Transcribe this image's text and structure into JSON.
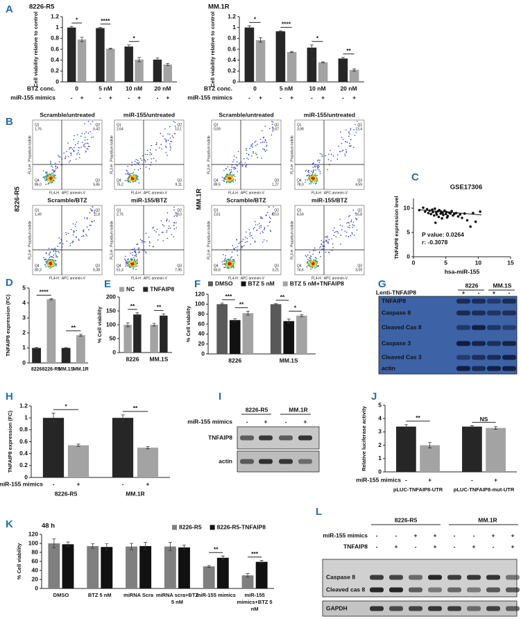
{
  "panel_letters": [
    "A",
    "B",
    "C",
    "D",
    "E",
    "F",
    "G",
    "H",
    "I",
    "J",
    "K",
    "L"
  ],
  "chart_data": [
    {
      "type": "bar",
      "title": "8226-R5",
      "ylabel": "Cell viability relative to control",
      "ylim": [
        0,
        1.2
      ],
      "yticks": [
        0,
        0.2,
        0.4,
        0.6,
        0.8,
        1,
        1.2
      ],
      "categories": [
        "0",
        "5 nM",
        "10 nM",
        "20 nM"
      ],
      "category_title": "BTZ conc.",
      "sub_title": "miR-155 mimics",
      "sub_labels": [
        "-",
        "+"
      ],
      "series": [
        {
          "color": "#262626",
          "values": [
            1.0,
            0.99,
            0.65,
            0.41
          ],
          "errors": [
            0.02,
            0.01,
            0.03,
            0.03
          ]
        },
        {
          "color": "#a3a3a3",
          "values": [
            0.78,
            0.61,
            0.41,
            0.32
          ],
          "errors": [
            0.04,
            0.01,
            0.04,
            0.02
          ],
          "significance": [
            "*",
            "****",
            "*",
            null
          ]
        }
      ]
    },
    {
      "type": "bar",
      "title": "MM.1R",
      "ylabel": "Cell viability relative to control",
      "ylim": [
        0,
        1.2
      ],
      "yticks": [
        0,
        0.2,
        0.4,
        0.6,
        0.8,
        1,
        1.2
      ],
      "categories": [
        "0",
        "5 nM",
        "10 nM",
        "20 nM"
      ],
      "category_title": "BTZ conc.",
      "sub_title": "miR-155 mimics",
      "sub_labels": [
        "-",
        "+"
      ],
      "series": [
        {
          "color": "#262626",
          "values": [
            1.0,
            0.93,
            0.63,
            0.43
          ],
          "errors": [
            0.03,
            0.01,
            0.05,
            0.02
          ]
        },
        {
          "color": "#a3a3a3",
          "values": [
            0.77,
            0.55,
            0.36,
            0.22
          ],
          "errors": [
            0.04,
            0.01,
            0.01,
            0.02
          ],
          "significance": [
            "*",
            "****",
            "*",
            "**"
          ]
        }
      ]
    },
    {
      "type": "scatter",
      "title": "GSE17306",
      "xlabel": "hsa-miR-155",
      "ylabel": "TNFAIP8 expression level",
      "xlim": [
        0,
        15
      ],
      "xticks": [
        0,
        5,
        10,
        15
      ],
      "ylim": [
        0,
        12
      ],
      "yticks": [
        0,
        5,
        10
      ],
      "color": "#111111",
      "x": [
        0.9,
        1.5,
        1.8,
        2.1,
        2.3,
        2.5,
        2.7,
        2.9,
        3.0,
        3.2,
        3.3,
        3.5,
        3.6,
        3.8,
        3.9,
        4.0,
        4.2,
        4.3,
        4.5,
        4.6,
        4.8,
        5.0,
        5.1,
        5.3,
        5.5,
        5.7,
        5.9,
        6.1,
        6.3,
        6.6,
        6.9,
        7.2,
        7.5,
        7.9,
        8.3,
        8.8,
        9.2,
        9.6,
        10.3,
        4.4,
        3.4,
        5.2
      ],
      "y": [
        9.6,
        10.1,
        9.3,
        9.8,
        9.0,
        9.5,
        8.8,
        9.7,
        9.2,
        8.5,
        9.9,
        9.1,
        8.7,
        9.4,
        8.2,
        9.6,
        8.9,
        9.3,
        9.0,
        8.6,
        9.5,
        8.8,
        9.2,
        8.4,
        9.1,
        8.9,
        9.4,
        8.5,
        8.8,
        9.0,
        8.3,
        8.7,
        8.0,
        8.9,
        7.5,
        6.2,
        9.0,
        7.2,
        9.3,
        7.9,
        7.0,
        8.1
      ],
      "trendline_x": [
        0.8,
        10.5
      ],
      "trendline_y": [
        9.7,
        8.6
      ],
      "annotations": [
        "P value: 0.0264",
        "r: -0.3078"
      ]
    },
    {
      "type": "bar",
      "ylabel": "TNFAIP8 expression (FC)",
      "ylim": [
        0,
        5
      ],
      "yticks": [
        0,
        1,
        2,
        3,
        4,
        5
      ],
      "categories": [
        "8226",
        "8226-R5",
        "MM.1S",
        "MM.1R"
      ],
      "series": [
        {
          "color": [
            "#262626",
            "#a3a3a3",
            "#262626",
            "#a3a3a3"
          ],
          "values": [
            1.0,
            4.25,
            1.0,
            1.85
          ],
          "errors": [
            0.03,
            0.04,
            0.02,
            0.06
          ],
          "significance": [
            null,
            "****",
            null,
            "**"
          ]
        }
      ]
    },
    {
      "type": "bar",
      "ylabel": "% Cell viability",
      "legend": "top-left",
      "ylim": [
        0,
        200
      ],
      "yticks": [
        0,
        50,
        100,
        150,
        200
      ],
      "categories": [
        "8226",
        "MM.1S"
      ],
      "series": [
        {
          "name": "NC",
          "color": "#a3a3a3",
          "values": [
            100,
            100
          ],
          "errors": [
            7,
            5
          ]
        },
        {
          "name": "TNFAIP8",
          "color": "#262626",
          "values": [
            137,
            133
          ],
          "errors": [
            6,
            6
          ],
          "significance": [
            "**",
            "**"
          ]
        }
      ]
    },
    {
      "type": "bar",
      "ylabel": "% Cell viability",
      "legend": "top-left",
      "ylim": [
        0,
        120
      ],
      "yticks": [
        0,
        20,
        40,
        60,
        80,
        100,
        120
      ],
      "categories": [
        "8226",
        "MM.1S"
      ],
      "series": [
        {
          "name": "DMSO",
          "color": "#595959",
          "values": [
            100,
            100
          ],
          "errors": [
            2,
            1
          ]
        },
        {
          "name": "BTZ 5 nM",
          "color": "#111111",
          "values": [
            68,
            66
          ],
          "errors": [
            3,
            4
          ],
          "significance": [
            "***",
            "**"
          ]
        },
        {
          "name": "BTZ 5 nM+TNFAIP8",
          "color": "#a3a3a3",
          "values": [
            82,
            77
          ],
          "errors": [
            4,
            2
          ],
          "significance": [
            "**",
            "*"
          ]
        }
      ]
    },
    {
      "type": "bar",
      "ylabel": "TNFAIP8 expression (FC)",
      "ylim": [
        0,
        1.2
      ],
      "yticks": [
        0,
        0.2,
        0.4,
        0.6,
        0.8,
        1,
        1.2
      ],
      "categories": [
        "8226-R5",
        "MM.1R"
      ],
      "sub_title": "miR-155 mimics",
      "sub_labels": [
        "-",
        "+"
      ],
      "series": [
        {
          "color": "#262626",
          "values": [
            1.0,
            1.0
          ],
          "errors": [
            0.08,
            0.05
          ]
        },
        {
          "color": "#a3a3a3",
          "values": [
            0.54,
            0.5
          ],
          "errors": [
            0.02,
            0.02
          ],
          "significance": [
            "*",
            "**"
          ]
        }
      ]
    },
    {
      "type": "bar",
      "ylabel": "Relative luciferase activity",
      "ylim": [
        0,
        5
      ],
      "yticks": [
        0,
        1,
        2,
        3,
        4,
        5
      ],
      "categories": [
        "pLUC-TNFAIP8-UTR",
        "pLUC-TNFAIP8-mut-UTR"
      ],
      "sub_title": "miR-155 mimics",
      "sub_labels": [
        "-",
        "+"
      ],
      "series": [
        {
          "color": "#262626",
          "values": [
            3.4,
            3.4
          ],
          "errors": [
            0.15,
            0.06
          ]
        },
        {
          "color": "#a3a3a3",
          "values": [
            2.0,
            3.3
          ],
          "errors": [
            0.2,
            0.1
          ],
          "significance": [
            "**",
            "NS"
          ]
        }
      ]
    },
    {
      "type": "bar",
      "title": "48 h",
      "ylabel": "% Cell viability",
      "legend": "top-right",
      "ylim": [
        0,
        120
      ],
      "yticks": [
        0,
        20,
        40,
        60,
        80,
        100,
        120
      ],
      "categories": [
        "DMSO",
        "BTZ 5 nM",
        "miRNA Scra",
        "miRNA scra+BTZ 5 nM",
        "miR-155 mimics",
        "miR-155 mimics+BTZ 5 nM"
      ],
      "series": [
        {
          "name": "8226-R5",
          "color": "#7f7f7f",
          "values": [
            100,
            94,
            93,
            93,
            49,
            29
          ],
          "errors": [
            10,
            5,
            7,
            9,
            2,
            4
          ]
        },
        {
          "name": "8226-R5-TNFAIP8",
          "color": "#111111",
          "values": [
            98,
            92,
            94,
            91,
            68,
            59
          ],
          "errors": [
            5,
            7,
            8,
            5,
            4,
            3
          ],
          "significance": [
            null,
            null,
            null,
            null,
            "**",
            "***"
          ]
        }
      ]
    }
  ],
  "flow": {
    "y_axis_label": "FL3-H : Propidium Iodide",
    "x_axis_label": "FL4-H : APC annexin-V",
    "quadrants": [
      "Q1",
      "Q2",
      "Q3",
      "Q4"
    ],
    "groups": [
      {
        "cell_line": "8226-R5",
        "plots": [
          {
            "title": "Scramble/untreated",
            "values": [
              "1,76",
              "6,42",
              "5,86",
              "86,0"
            ]
          },
          {
            "title": "miR-155/untreated",
            "values": [
              "2,64",
              "13,1",
              "9,11",
              "75,2"
            ]
          },
          {
            "title": "Scramble/BTZ",
            "values": [
              "1,49",
              "11,8",
              "6,38",
              "80,3"
            ]
          },
          {
            "title": "miR-155/BTZ",
            "values": [
              "2,75",
              "28,0",
              "7,95",
              "61,3"
            ]
          }
        ]
      },
      {
        "cell_line": "MM.1R",
        "plots": [
          {
            "title": "Scramble/untreated",
            "values": [
              "0,59",
              "8,67",
              "1,27",
              "89,5"
            ]
          },
          {
            "title": "miR-155/untreated",
            "values": [
              "3,98",
              "13,4",
              "4,59",
              "78,0"
            ]
          },
          {
            "title": "Scramble/BTZ",
            "values": [
              "2,61",
              "10,0",
              "3,21",
              "83,6"
            ]
          },
          {
            "title": "miR-155/BTZ",
            "values": [
              "6,59",
              "16,8",
              "3,09",
              "74,6"
            ]
          }
        ]
      }
    ]
  },
  "blots": [
    {
      "groups": [
        "8226",
        "MM.1S"
      ],
      "conditions": [
        {
          "name": "Lenti-TNFAIP8",
          "lanes": [
            "+",
            "-",
            "+",
            "-"
          ]
        }
      ],
      "rows": [
        "TNFAIP8",
        "Caspase 8",
        "Cleaved Cas 8",
        "Caspase 3",
        "Cleaved Cas 3",
        "actin"
      ]
    },
    {
      "groups": [
        "8226-R5",
        "MM.1R"
      ],
      "conditions": [
        {
          "name": "miR-155 mimics",
          "lanes": [
            "-",
            "+",
            "-",
            "+"
          ]
        }
      ],
      "rows": [
        "TNFAIP8",
        "actin"
      ]
    },
    {
      "groups": [
        "8226-R5",
        "MM.1R"
      ],
      "conditions": [
        {
          "name": "miR-155 mimics",
          "lanes": [
            "-",
            "-",
            "+",
            "+",
            "-",
            "-",
            "+",
            "+"
          ]
        },
        {
          "name": "TNFAIP8",
          "lanes": [
            "-",
            "+",
            "-",
            "+",
            "-",
            "+",
            "-",
            "+"
          ]
        }
      ],
      "rows": [
        "Caspase 8",
        "Cleaved cas 8",
        "GAPDH"
      ]
    }
  ]
}
